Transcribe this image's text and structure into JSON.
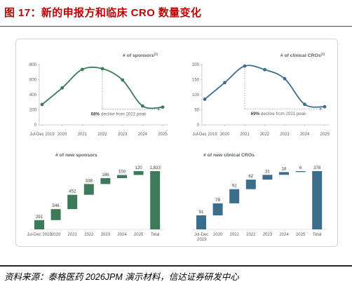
{
  "figure": {
    "title": "图 17：新的申报方和临床 CRO 数量变化",
    "title_color": "#c00000",
    "source": "资料来源：泰格医药 2026JPM 演示材料，信达证券研发中心"
  },
  "chart_data": [
    {
      "type": "line",
      "title": "# of sponsors",
      "title_note": "(1)",
      "x": [
        "Jul-Dec 2019",
        "2020",
        "2021",
        "2022",
        "2023",
        "2024",
        "2025"
      ],
      "series": [
        {
          "values": [
            270,
            490,
            735,
            745,
            595,
            250,
            235
          ]
        }
      ],
      "ylim": [
        0,
        800
      ],
      "yticks": [
        0,
        200,
        400,
        600,
        800
      ],
      "grid": false,
      "color": "#3c7a5a",
      "annotation": {
        "highlight": "68%",
        "text": "decline from 2022 peak"
      }
    },
    {
      "type": "line",
      "title": "# of clinical CROs",
      "title_note": "(1)",
      "x": [
        "Jul-Dec 2019",
        "2020",
        "2021",
        "2022",
        "2023",
        "2024",
        "2025"
      ],
      "series": [
        {
          "values": [
            85,
            140,
            195,
            183,
            153,
            68,
            60
          ]
        }
      ],
      "ylim": [
        0,
        200
      ],
      "yticks": [
        0,
        50,
        100,
        150,
        200
      ],
      "grid": false,
      "color": "#3b6e8c",
      "annotation": {
        "highlight": "69%",
        "text": "decline from 2021 peak"
      }
    },
    {
      "type": "bar",
      "subtype": "waterfall",
      "title": "# of new sponsors",
      "categories": [
        "Jul-Dec 2019",
        "2020",
        "2021",
        "2022",
        "2023",
        "2024",
        "2025",
        "Total"
      ],
      "values": [
        291,
        346,
        452,
        338,
        186,
        100,
        120,
        1833
      ],
      "value_labels": [
        "291",
        "346",
        "452",
        "338",
        "186",
        "100",
        "120",
        "1,833"
      ],
      "color": "#3c7a5a"
    },
    {
      "type": "bar",
      "subtype": "waterfall",
      "title": "# of new clinical CROs",
      "categories": [
        "Jul-Dec 2019",
        "2020",
        "2021",
        "2022",
        "2023",
        "2024",
        "2025",
        "Total"
      ],
      "values": [
        91,
        78,
        92,
        62,
        31,
        18,
        6,
        378
      ],
      "value_labels": [
        "91",
        "78",
        "92",
        "62",
        "31",
        "18",
        "6",
        "378"
      ],
      "color": "#3b6e8c"
    }
  ]
}
